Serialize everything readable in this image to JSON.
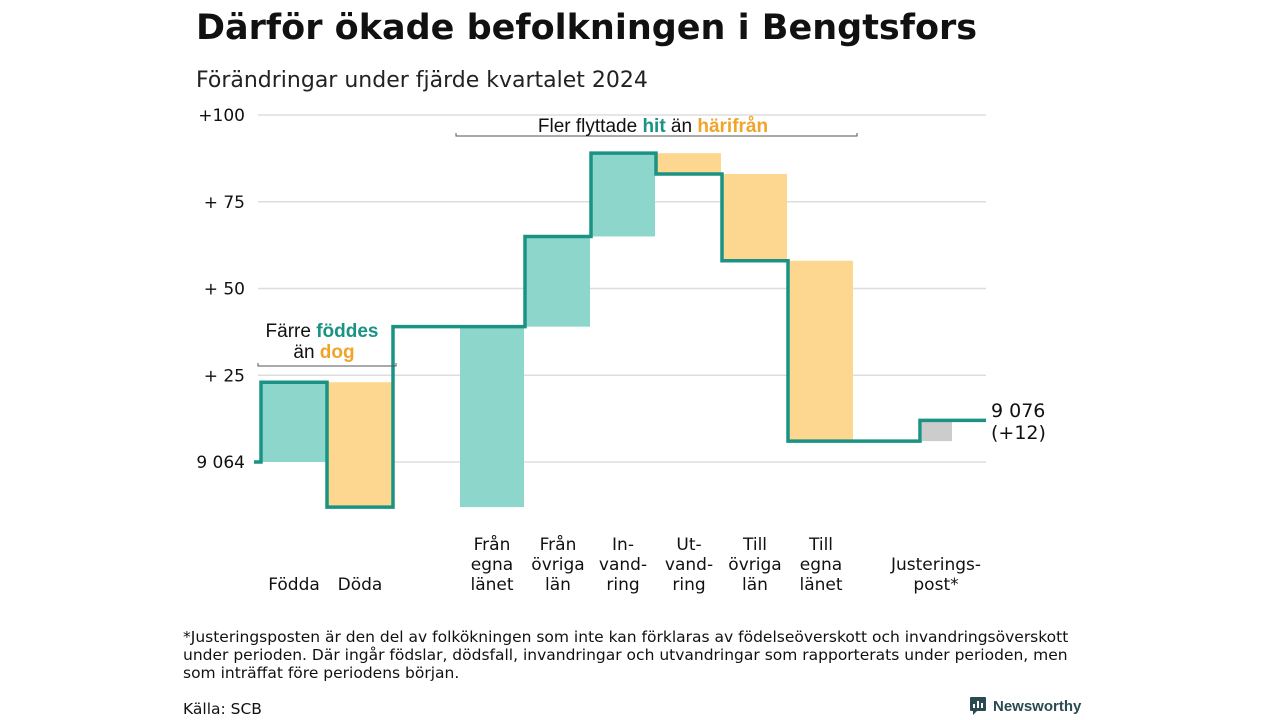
{
  "title": "Därför ökade befolkningen i Bengtsfors",
  "subtitle": "Förändringar under fjärde kvartalet 2024",
  "chart_data": {
    "type": "waterfall",
    "start_label": "9 064",
    "end_label_value": "9 076",
    "end_label_change": "(+12)",
    "ylim": [
      -13,
      100
    ],
    "y_ticks": [
      {
        "value": 0,
        "label": "9 064"
      },
      {
        "value": 25,
        "label": "+ 25"
      },
      {
        "value": 50,
        "label": "+ 50"
      },
      {
        "value": 75,
        "label": "+ 75"
      },
      {
        "value": 100,
        "label": "+100"
      }
    ],
    "categories": [
      {
        "label_lines": [
          "Födda"
        ],
        "change": 23,
        "from": 0,
        "to": 23,
        "type": "increase"
      },
      {
        "label_lines": [
          "Döda"
        ],
        "change": -36,
        "from": 23,
        "to": -13,
        "type": "decrease"
      },
      {
        "label_lines": [
          "Från",
          "egna",
          "länet"
        ],
        "change": 52,
        "from": -13,
        "to": 39,
        "type": "increase"
      },
      {
        "label_lines": [
          "Från",
          "övriga",
          "län"
        ],
        "change": 26,
        "from": 39,
        "to": 65,
        "type": "increase"
      },
      {
        "label_lines": [
          "In-",
          "vand-",
          "ring"
        ],
        "change": 24,
        "from": 65,
        "to": 89,
        "type": "increase"
      },
      {
        "label_lines": [
          "Ut-",
          "vand-",
          "ring"
        ],
        "change": -6,
        "from": 89,
        "to": 83,
        "type": "decrease"
      },
      {
        "label_lines": [
          "Till",
          "övriga",
          "län"
        ],
        "change": -25,
        "from": 83,
        "to": 58,
        "type": "decrease"
      },
      {
        "label_lines": [
          "Till",
          "egna",
          "länet"
        ],
        "change": -52,
        "from": 58,
        "to": 6,
        "type": "decrease"
      },
      {
        "label_lines": [
          "Justerings-",
          "post*"
        ],
        "change": 6,
        "from": 6,
        "to": 12,
        "type": "adjustment"
      }
    ],
    "annotations": [
      {
        "id": "births",
        "line1_prefix": "Färre ",
        "line1_highlight": "föddes",
        "line2_prefix": "än ",
        "line2_highlight": "dog"
      },
      {
        "id": "migration",
        "prefix": "Fler flyttade ",
        "highlight1": "hit",
        "middle": " än ",
        "highlight2": "härifrån"
      }
    ],
    "colors": {
      "increase": "#8dd6cc",
      "decrease": "#fdd690",
      "adjustment": "#cccccc",
      "line": "#1a9384",
      "teal_text": "#1a9384",
      "orange_text": "#f0a52a",
      "grid": "#dddddd"
    },
    "grid": true
  },
  "footnote": "*Justeringsposten är den del av folkökningen som inte kan förklaras av födelseöverskott och invandringsöverskott under perioden. Där ingår födslar, dödsfall, invandringar och utvandringar som rapporterats under perioden, men som inträffat före periodens början.",
  "source": "Källa: SCB",
  "logo": {
    "text": "Newsworthy",
    "icon": "newsworthy-logo-icon"
  }
}
